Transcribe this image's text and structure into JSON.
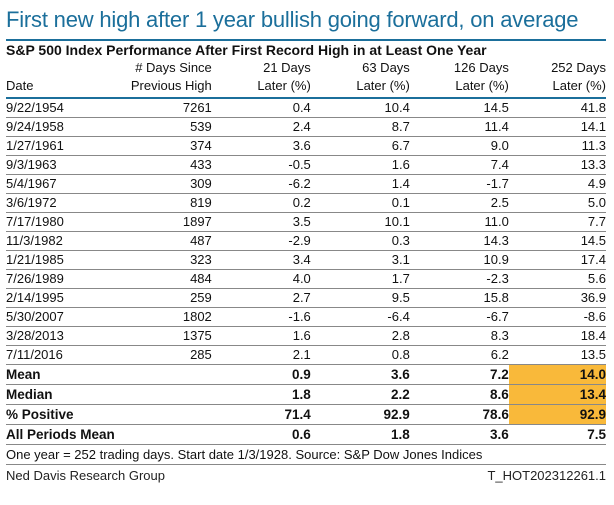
{
  "title": "First new high after 1 year bullish going forward, on average",
  "subtitle": "S&P 500 Index Performance After First Record High in at Least One Year",
  "headers": [
    [
      "",
      "Date"
    ],
    [
      "# Days Since",
      "Previous High"
    ],
    [
      "21 Days",
      "Later (%)"
    ],
    [
      "63 Days",
      "Later (%)"
    ],
    [
      "126 Days",
      "Later (%)"
    ],
    [
      "252 Days",
      "Later (%)"
    ]
  ],
  "rows": [
    [
      "9/22/1954",
      "7261",
      "0.4",
      "10.4",
      "14.5",
      "41.8"
    ],
    [
      "9/24/1958",
      "539",
      "2.4",
      "8.7",
      "11.4",
      "14.1"
    ],
    [
      "1/27/1961",
      "374",
      "3.6",
      "6.7",
      "9.0",
      "11.3"
    ],
    [
      "9/3/1963",
      "433",
      "-0.5",
      "1.6",
      "7.4",
      "13.3"
    ],
    [
      "5/4/1967",
      "309",
      "-6.2",
      "1.4",
      "-1.7",
      "4.9"
    ],
    [
      "3/6/1972",
      "819",
      "0.2",
      "0.1",
      "2.5",
      "5.0"
    ],
    [
      "7/17/1980",
      "1897",
      "3.5",
      "10.1",
      "11.0",
      "7.7"
    ],
    [
      "11/3/1982",
      "487",
      "-2.9",
      "0.3",
      "14.3",
      "14.5"
    ],
    [
      "1/21/1985",
      "323",
      "3.4",
      "3.1",
      "10.9",
      "17.4"
    ],
    [
      "7/26/1989",
      "484",
      "4.0",
      "1.7",
      "-2.3",
      "5.6"
    ],
    [
      "2/14/1995",
      "259",
      "2.7",
      "9.5",
      "15.8",
      "36.9"
    ],
    [
      "5/30/2007",
      "1802",
      "-1.6",
      "-6.4",
      "-6.7",
      "-8.6"
    ],
    [
      "3/28/2013",
      "1375",
      "1.6",
      "2.8",
      "8.3",
      "18.4"
    ],
    [
      "7/11/2016",
      "285",
      "2.1",
      "0.8",
      "6.2",
      "13.5"
    ]
  ],
  "summary": [
    [
      "Mean",
      "",
      "0.9",
      "3.6",
      "7.2",
      "14.0"
    ],
    [
      "Median",
      "",
      "1.8",
      "2.2",
      "8.6",
      "13.4"
    ],
    [
      "% Positive",
      "",
      "71.4",
      "92.9",
      "78.6",
      "92.9"
    ],
    [
      "All Periods Mean",
      "",
      "0.6",
      "1.8",
      "3.6",
      "7.5"
    ]
  ],
  "highlight_color": "#f9b93a",
  "accent_color": "#1b6f9b",
  "footnote": "One year = 252 trading days. Start date 1/3/1928. Source: S&P Dow Jones Indices",
  "source": "Ned Davis Research Group",
  "code": "T_HOT202312261.1"
}
